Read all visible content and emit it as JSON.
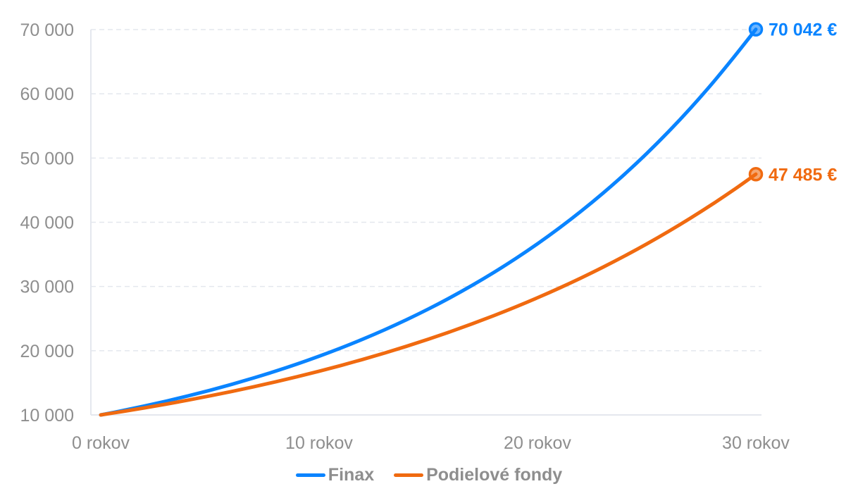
{
  "chart_data": {
    "type": "line",
    "title": "",
    "xlabel": "",
    "ylabel": "",
    "x": [
      0,
      1,
      2,
      3,
      4,
      5,
      6,
      7,
      8,
      9,
      10,
      11,
      12,
      13,
      14,
      15,
      16,
      17,
      18,
      19,
      20,
      21,
      22,
      23,
      24,
      25,
      26,
      27,
      28,
      29,
      30
    ],
    "x_tick_labels": [
      "0 rokov",
      "10 rokov",
      "20 rokov",
      "30 rokov"
    ],
    "x_tick_values": [
      0,
      10,
      20,
      30
    ],
    "y_tick_labels": [
      "10 000",
      "20 000",
      "30 000",
      "40 000",
      "50 000",
      "60 000",
      "70 000"
    ],
    "y_tick_values": [
      10000,
      20000,
      30000,
      40000,
      50000,
      60000,
      70000
    ],
    "ylim": [
      10000,
      70000
    ],
    "xlim": [
      0,
      30
    ],
    "grid": {
      "horizontal": true,
      "style": "dashed"
    },
    "legend_position": "bottom-center",
    "series": [
      {
        "name": "Finax",
        "color": "#0a84ff",
        "end_label": "70 042 €",
        "values": [
          10000,
          10671,
          11387,
          12151,
          12966,
          13836,
          14764,
          15755,
          16812,
          17940,
          19143,
          20428,
          21798,
          23261,
          24822,
          26487,
          28264,
          30160,
          32184,
          34343,
          36647,
          39106,
          41730,
          44529,
          47517,
          50705,
          54107,
          57737,
          61611,
          65744,
          70042
        ]
      },
      {
        "name": "Podielové fondy",
        "color": "#f06a10",
        "end_label": "47 485 €",
        "values": [
          10000,
          10533,
          11094,
          11686,
          12308,
          12964,
          13655,
          14383,
          15149,
          15957,
          16807,
          17703,
          18646,
          19640,
          20687,
          21789,
          22950,
          24173,
          25462,
          26819,
          28248,
          29753,
          31339,
          33009,
          34768,
          36621,
          38573,
          40629,
          42794,
          45075,
          47485
        ]
      }
    ]
  },
  "legend": {
    "items": [
      {
        "label": "Finax",
        "color": "#0a84ff"
      },
      {
        "label": "Podielové fondy",
        "color": "#f06a10"
      }
    ]
  }
}
